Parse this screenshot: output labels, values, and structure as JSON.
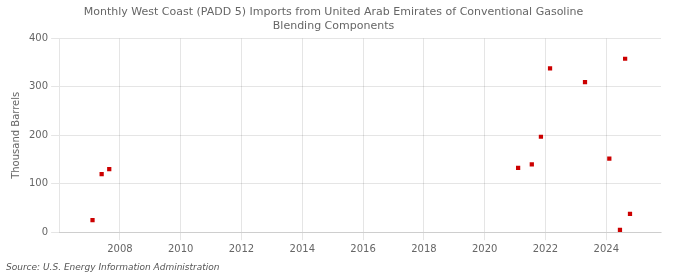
{
  "chart_data": {
    "type": "scatter",
    "title": "Monthly West Coast (PADD 5) Imports from United Arab Emirates of Conventional Gasoline\nBlending Components",
    "ylabel": "Thousand Barrels",
    "source": "Source: U.S. Energy Information Administration",
    "x": [
      2007.1,
      2007.4,
      2007.65,
      2021.1,
      2021.55,
      2021.85,
      2022.15,
      2023.3,
      2024.1,
      2024.45,
      2024.62,
      2024.78
    ],
    "values": [
      25,
      120,
      130,
      133,
      140,
      197,
      338,
      310,
      152,
      5,
      358,
      38
    ],
    "color": "#cc0000",
    "marker": "square",
    "xlim": [
      2006.0,
      2025.8
    ],
    "ylim": [
      0,
      400
    ],
    "xticks": [
      2008,
      2010,
      2012,
      2014,
      2016,
      2018,
      2020,
      2022,
      2024
    ],
    "yticks": [
      0,
      100,
      200,
      300,
      400
    ],
    "grid": true
  }
}
